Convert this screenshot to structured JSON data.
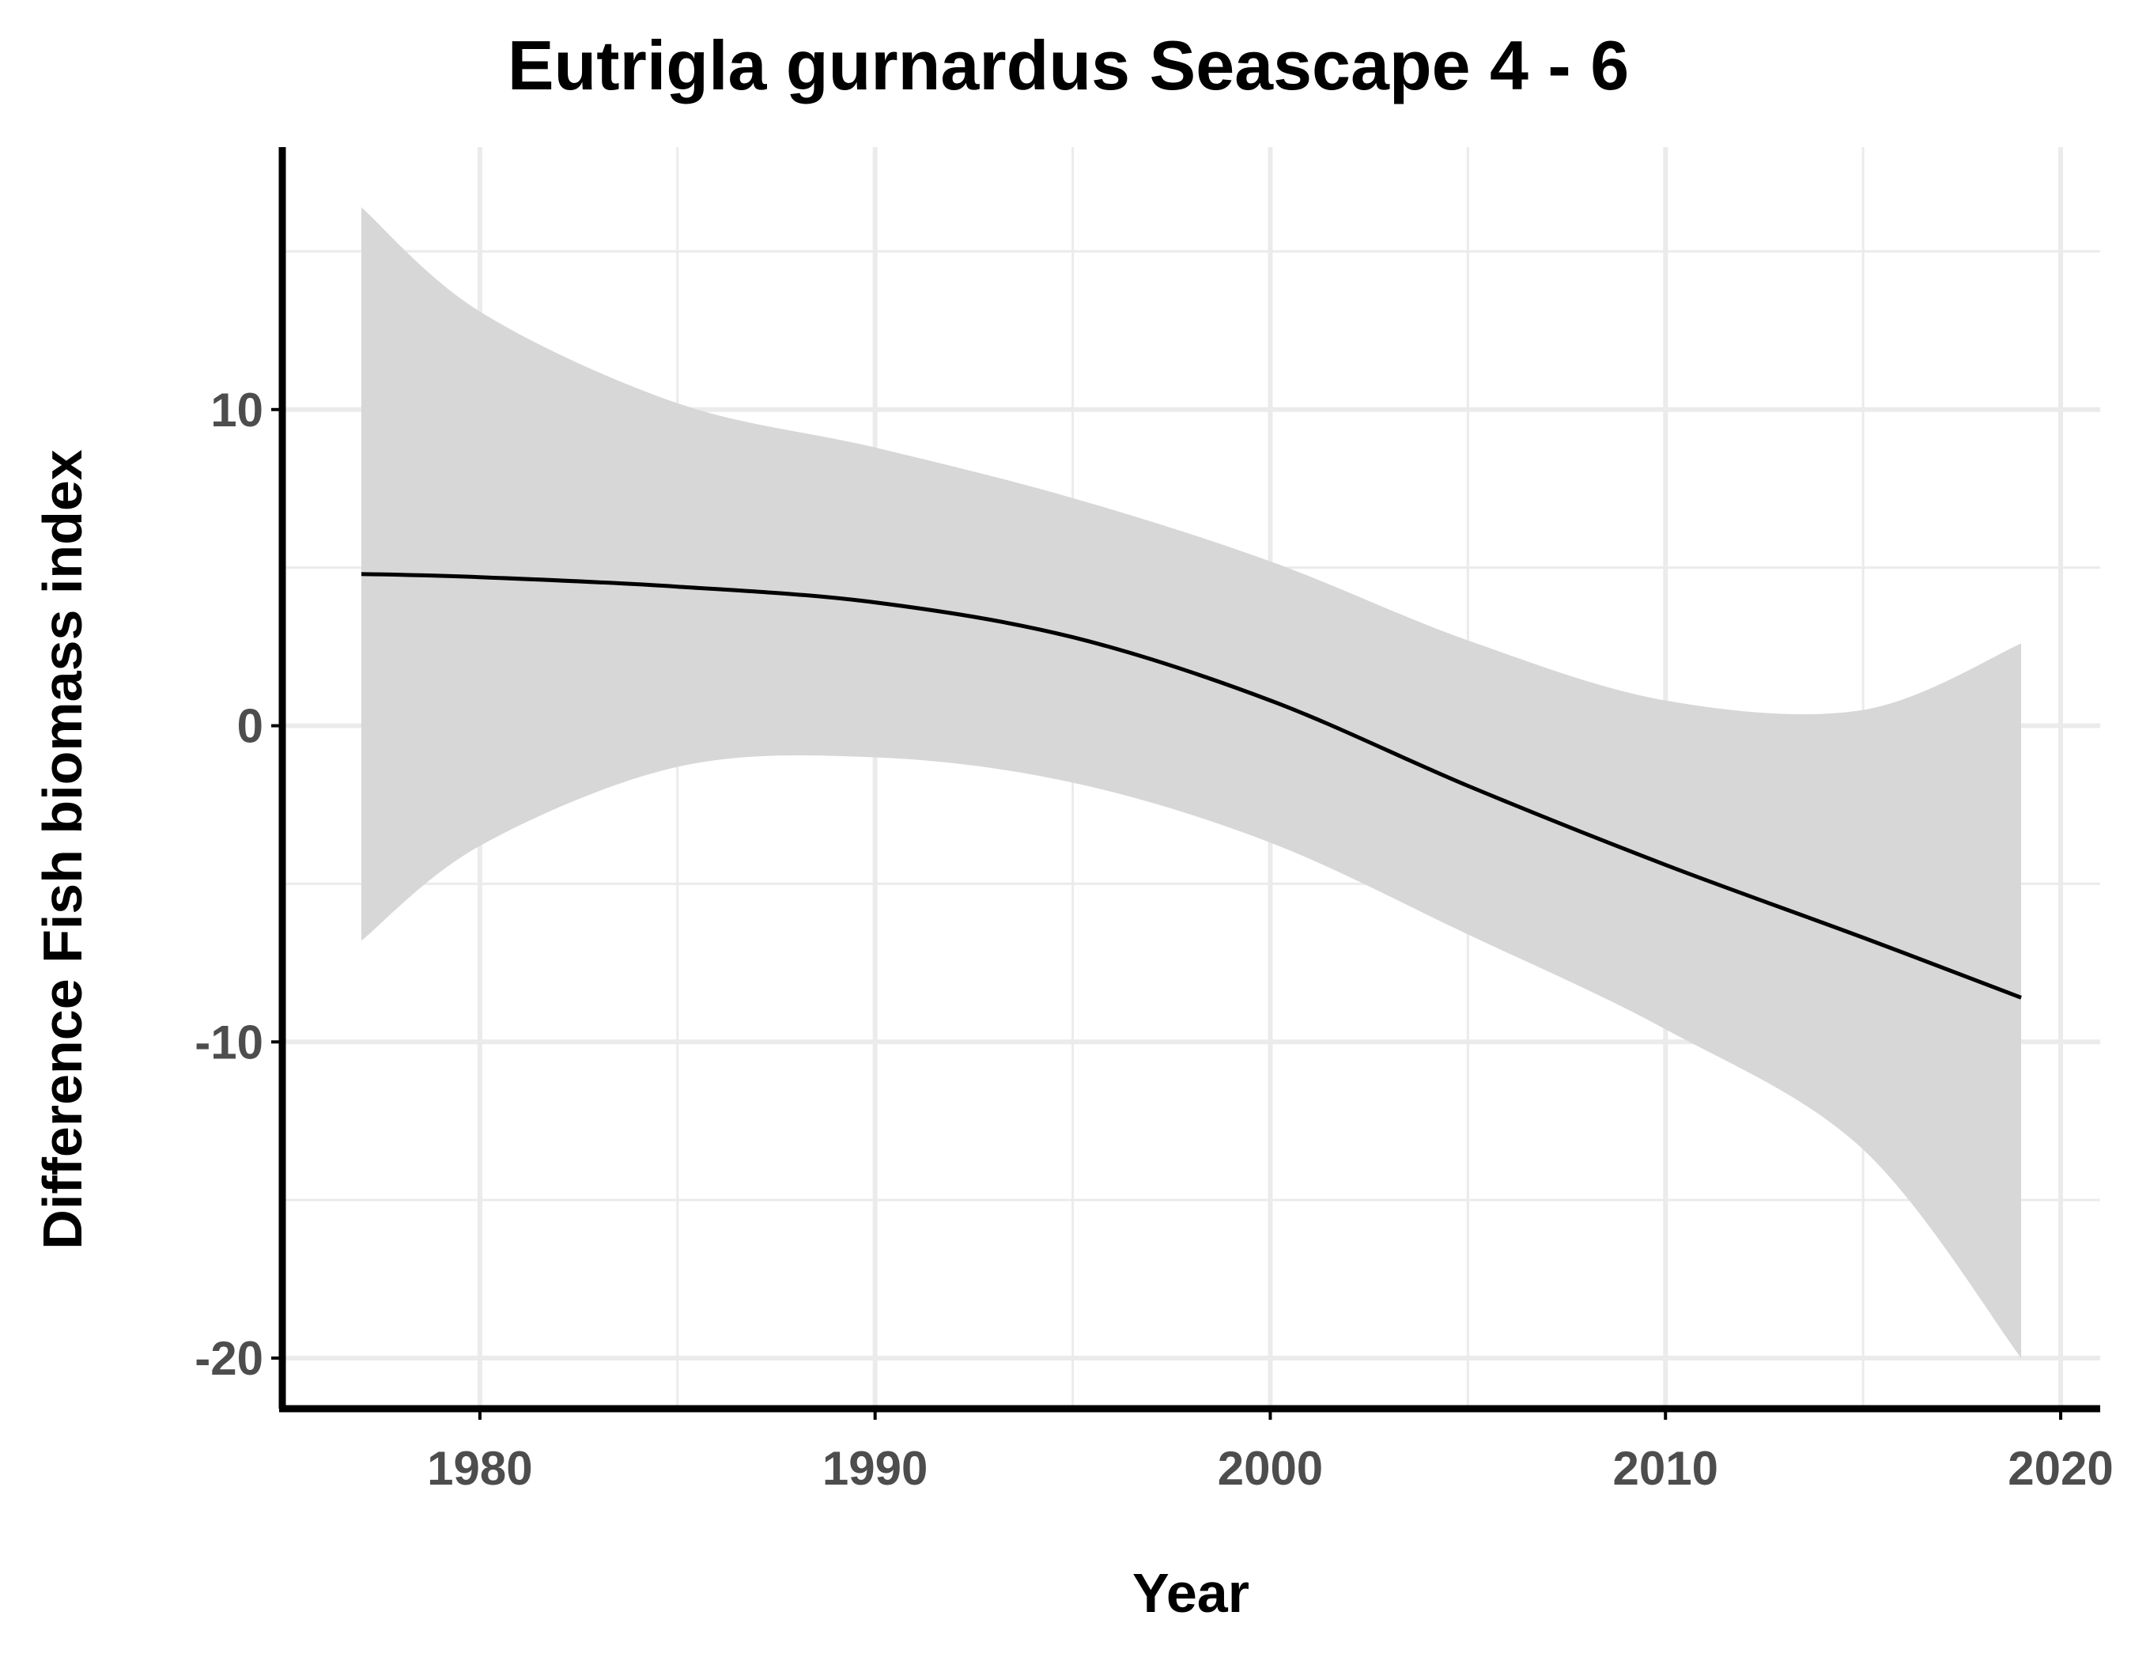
{
  "chart_data": {
    "type": "line",
    "title": "Eutrigla gurnardus Seascape 4 - 6",
    "xlabel": "Year",
    "ylabel": "Difference Fish biomass index",
    "xlim": [
      1975,
      2021
    ],
    "ylim": [
      -21.6,
      18.3
    ],
    "x_ticks": [
      1980,
      1990,
      2000,
      2010,
      2020
    ],
    "x_tick_labels": [
      "1980",
      "1990",
      "2000",
      "2010",
      "2020"
    ],
    "y_ticks": [
      -20,
      -10,
      0,
      10
    ],
    "y_tick_labels": [
      "-20",
      "-10",
      "0",
      "10"
    ],
    "grid": true,
    "series": [
      {
        "style": "smooth fit with confidence band",
        "x": [
          1977,
          1980,
          1985,
          1990,
          1995,
          2000,
          2005,
          2010,
          2015,
          2019
        ],
        "y": [
          4.8,
          4.7,
          4.4,
          3.9,
          2.8,
          0.8,
          -1.9,
          -4.4,
          -6.7,
          -8.6
        ],
        "lower": [
          -6.8,
          -3.8,
          -1.3,
          -1.0,
          -1.8,
          -3.7,
          -6.6,
          -9.6,
          -13.4,
          -20.0
        ],
        "upper": [
          16.4,
          13.1,
          10.2,
          8.8,
          7.2,
          5.2,
          2.7,
          0.8,
          0.5,
          2.6
        ]
      }
    ],
    "colors": {
      "line": "#000000",
      "band": "#d6d6d6",
      "grid": "#ebebeb",
      "axis": "#000000",
      "tick_label": "#4d4d4d"
    }
  }
}
